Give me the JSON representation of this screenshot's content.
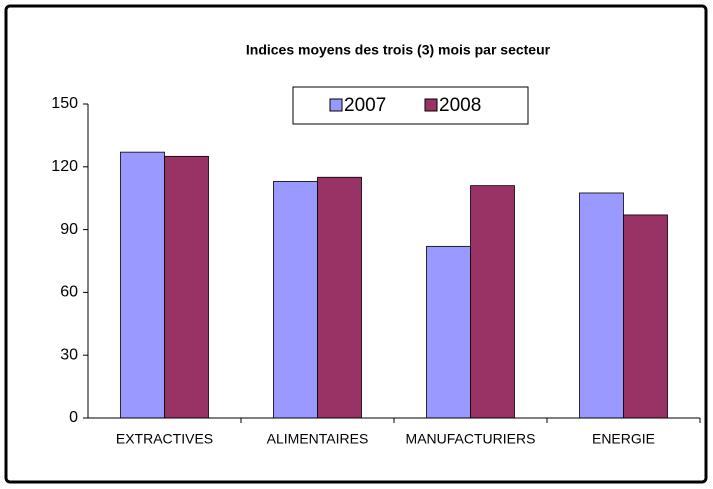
{
  "chart_data": {
    "type": "bar",
    "title": "Indices moyens des trois (3) mois par secteur",
    "categories": [
      "EXTRACTIVES",
      "ALIMENTAIRES",
      "MANUFACTURIERS",
      "ENERGIE"
    ],
    "series": [
      {
        "name": "2007",
        "color": "#9999ff",
        "values": [
          127,
          113,
          82,
          107.5
        ]
      },
      {
        "name": "2008",
        "color": "#993366",
        "values": [
          125,
          115,
          111,
          97
        ]
      }
    ],
    "ylim": [
      0,
      150
    ],
    "yticks": [
      0,
      30,
      60,
      90,
      120,
      150
    ]
  }
}
